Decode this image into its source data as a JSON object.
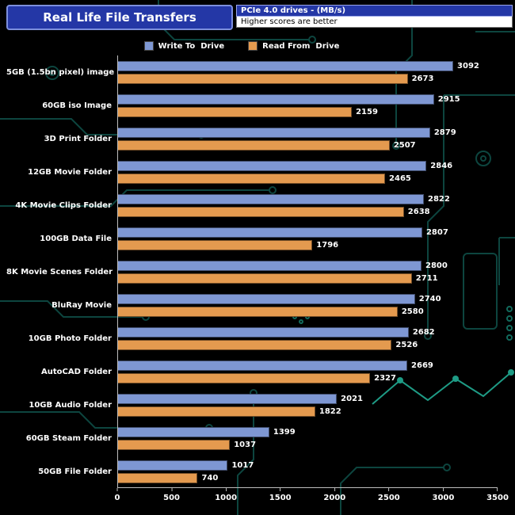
{
  "header": {
    "title": "Real Life File Transfers",
    "drive_type": "PCIe 4.0 drives - (MB/s)",
    "note": "Higher scores are better"
  },
  "legend": [
    {
      "label": "Write To  Drive",
      "color": "#7e97d3"
    },
    {
      "label": "Read From  Drive",
      "color": "#e49a4f"
    }
  ],
  "colors": {
    "background": "#000000",
    "title_bg": "#2437a6",
    "title_border": "#7d8fdd",
    "bar_write": "#7e97d3",
    "bar_read": "#e49a4f",
    "axis_line": "#bdbdbd",
    "text": "#ffffff",
    "circuit_dark": "#0d453f",
    "circuit_bright": "#1e9b85"
  },
  "chart_data": {
    "type": "bar",
    "orientation": "horizontal",
    "title": "Real Life File Transfers",
    "subtitle": "PCIe 4.0 drives - (MB/s)",
    "note": "Higher scores are better",
    "categories": [
      "5GB (1.5bn pixel) image",
      "60GB iso Image",
      "3D Print Folder",
      "12GB Movie Folder",
      "4K Movie Clips Folder",
      "100GB Data File",
      "8K Movie Scenes Folder",
      "BluRay Movie",
      "10GB Photo Folder",
      "AutoCAD Folder",
      "10GB Audio Folder",
      "60GB Steam Folder",
      "50GB File Folder"
    ],
    "series": [
      {
        "name": "Write To Drive",
        "color": "#7e97d3",
        "values": [
          3092,
          2915,
          2879,
          2846,
          2822,
          2807,
          2800,
          2740,
          2682,
          2669,
          2021,
          1399,
          1017
        ]
      },
      {
        "name": "Read From Drive",
        "color": "#e49a4f",
        "values": [
          2673,
          2159,
          2507,
          2465,
          2638,
          1796,
          2711,
          2580,
          2526,
          2327,
          1822,
          1037,
          740
        ]
      }
    ],
    "xlabel": "",
    "ylabel": "",
    "xlim": [
      0,
      3500
    ],
    "xticks": [
      0,
      500,
      1000,
      1500,
      2000,
      2500,
      3000,
      3500
    ],
    "grid": false,
    "legend_position": "top",
    "value_labels": true
  }
}
